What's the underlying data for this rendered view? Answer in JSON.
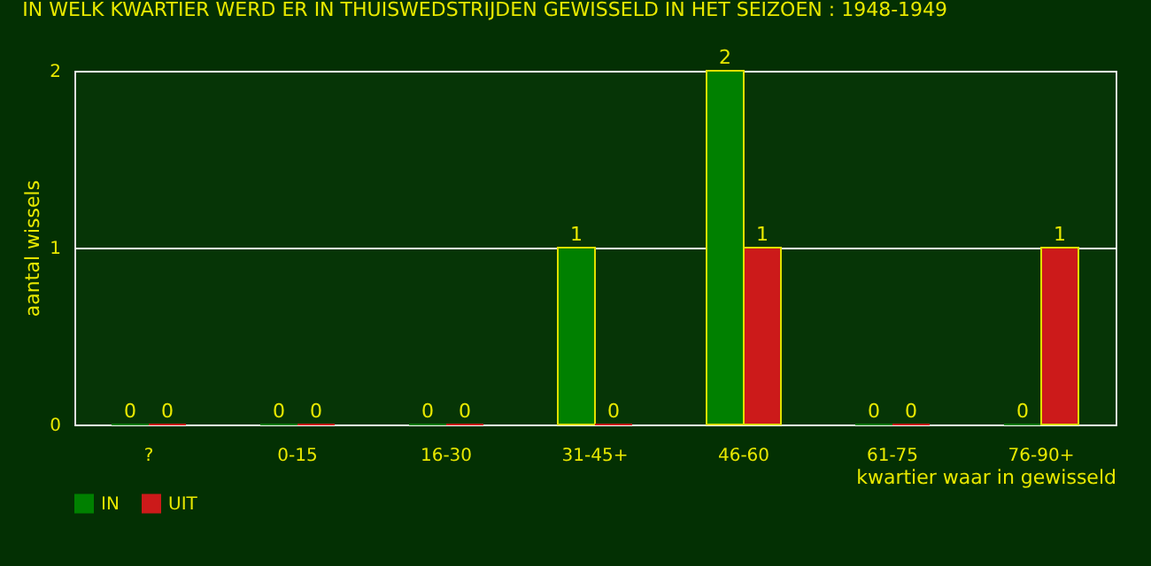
{
  "chart_data": {
    "type": "bar",
    "title": "IN WELK KWARTIER WERD ER IN THUISWEDSTRIJDEN GEWISSELD IN HET SEIZOEN : 1948-1949",
    "xlabel": "kwartier waar in gewisseld",
    "ylabel": "aantal wissels",
    "categories": [
      "?",
      "0-15",
      "16-30",
      "31-45+",
      "46-60",
      "61-75",
      "76-90+"
    ],
    "series": [
      {
        "name": "IN",
        "color": "#008000",
        "values": [
          0,
          0,
          0,
          1,
          2,
          0,
          0
        ]
      },
      {
        "name": "UIT",
        "color": "#cc1a1a",
        "values": [
          0,
          0,
          0,
          0,
          1,
          0,
          1
        ]
      }
    ],
    "ylim": [
      0,
      2
    ],
    "yticks": [
      0,
      1,
      2
    ],
    "grid": "y",
    "legend": "bottom",
    "data_labels": true
  }
}
